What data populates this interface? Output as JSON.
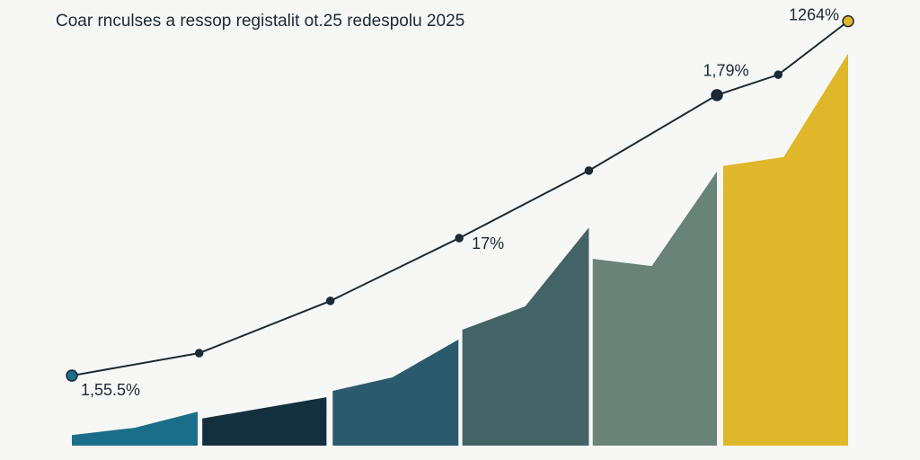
{
  "chart_data": {
    "type": "line",
    "title": "Coar rnculses a ressop registalit ot.25 redespolu 2025",
    "xlim": [
      0,
      100
    ],
    "ylim": [
      0,
      105
    ],
    "series": [
      {
        "color": "#1b2a35",
        "x": [
          0,
          16.4,
          33.3,
          49.9,
          66.6,
          83.1,
          91,
          100
        ],
        "values": [
          16.5,
          21.8,
          34.1,
          48.9,
          64.8,
          82.6,
          87.4,
          100
        ],
        "marker_colors": [
          "#1a6e8a",
          "#1b2a35",
          "#1b2a35",
          "#1b2a35",
          "#1b2a35",
          "#1b2a35",
          "#1b2a35",
          "#e0b62a"
        ]
      }
    ],
    "areas": [
      {
        "color": "#1a6e8a",
        "x": [
          0,
          8.1,
          16.2
        ],
        "values": [
          2.5,
          4.2,
          8.0
        ]
      },
      {
        "color": "#14303f",
        "x": [
          16.8,
          32.8
        ],
        "values": [
          6.4,
          11.4
        ]
      },
      {
        "color": "#2b5a6e",
        "x": [
          33.6,
          41.3,
          49.8
        ],
        "values": [
          12.9,
          16.1,
          25.0
        ]
      },
      {
        "color": "#446366",
        "x": [
          50.3,
          58.4,
          66.6
        ],
        "values": [
          27.3,
          32.8,
          51.4
        ]
      },
      {
        "color": "#6a8379",
        "x": [
          67.1,
          74.7,
          83.1
        ],
        "values": [
          44.0,
          42.3,
          64.6
        ]
      },
      {
        "color": "#e0b62a",
        "x": [
          83.9,
          91.7,
          100
        ],
        "values": [
          65.9,
          68.0,
          92.4
        ]
      }
    ],
    "annotations": [
      {
        "text": "1,55.5%",
        "point": 0
      },
      {
        "text": "17%",
        "point": 3
      },
      {
        "text": "1,79%",
        "point": 5
      },
      {
        "text": "1264%",
        "point": 7
      }
    ]
  }
}
